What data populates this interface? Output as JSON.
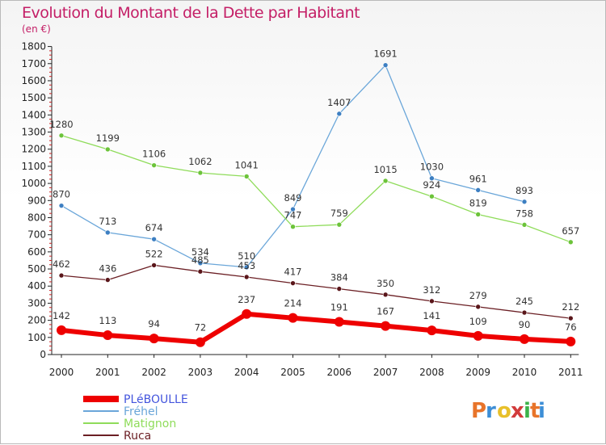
{
  "header": {
    "title": "Evolution du Montant de la Dette par Habitant",
    "unit": "(en €)"
  },
  "logo": {
    "text": "Proxiti",
    "colors": [
      "#e8742a",
      "#3d8ed6",
      "#e8c02a",
      "#d23b3b",
      "#3db24a",
      "#e8742a",
      "#3d8ed6"
    ]
  },
  "chart_data": {
    "type": "line",
    "title": "Evolution du Montant de la Dette par Habitant",
    "subtitle": "(en €)",
    "x": [
      "2000",
      "2001",
      "2002",
      "2003",
      "2004",
      "2005",
      "2006",
      "2007",
      "2008",
      "2009",
      "2010",
      "2011"
    ],
    "ylim": [
      0,
      1800
    ],
    "yticks": [
      0,
      100,
      200,
      300,
      400,
      500,
      600,
      700,
      800,
      900,
      1000,
      1100,
      1200,
      1300,
      1400,
      1500,
      1600,
      1700,
      1800
    ],
    "grid": false,
    "legend_position": "bottom-left",
    "series": [
      {
        "name": "Fréhel",
        "color": "#6aa6d9",
        "marker": "#3d7fc2",
        "width": 1.3,
        "values": [
          870,
          713,
          674,
          534,
          510,
          849,
          1407,
          1691,
          1030,
          961,
          893,
          null
        ],
        "label_dy": [
          -10,
          -10,
          -10,
          -10,
          -10,
          -10,
          -10,
          -10,
          -10,
          -10,
          -10,
          0
        ]
      },
      {
        "name": "Matignon",
        "color": "#8fdc5a",
        "marker": "#6cc33a",
        "width": 1.3,
        "values": [
          1280,
          1199,
          1106,
          1062,
          1041,
          747,
          759,
          1015,
          924,
          819,
          758,
          657
        ],
        "label_dy": [
          -10,
          -10,
          -10,
          -10,
          -10,
          -10,
          -10,
          -10,
          -10,
          -10,
          -10,
          -10
        ]
      },
      {
        "name": "Ruca",
        "color": "#6b1f24",
        "marker": "#5a161a",
        "width": 1.3,
        "values": [
          462,
          436,
          522,
          485,
          453,
          417,
          384,
          350,
          312,
          279,
          245,
          212
        ],
        "label_dy": [
          -10,
          -10,
          -10,
          -10,
          -10,
          -10,
          -10,
          -10,
          -10,
          -10,
          -10,
          -10
        ]
      },
      {
        "name": "PLéBOULLE",
        "color": "#ee0000",
        "marker": "#ee0000",
        "width": 6,
        "values": [
          142,
          113,
          94,
          72,
          237,
          214,
          191,
          167,
          141,
          109,
          90,
          76
        ],
        "label_dy": [
          -14,
          -14,
          -14,
          -14,
          -14,
          -14,
          -14,
          -14,
          -14,
          -14,
          -14,
          -14
        ]
      }
    ],
    "legend_order": [
      "PLéBOULLE",
      "Fréhel",
      "Matignon",
      "Ruca"
    ]
  }
}
